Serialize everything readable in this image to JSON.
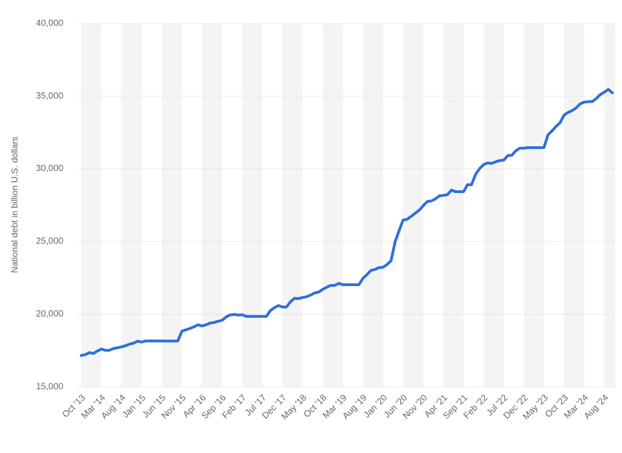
{
  "chart_data": {
    "type": "line",
    "y_label": "National debt in billion U.S. dollars",
    "categories": [
      "Oct '13",
      null,
      null,
      null,
      null,
      "Mar '14",
      null,
      null,
      null,
      null,
      "Aug '14",
      null,
      null,
      null,
      null,
      "Jan '15",
      null,
      null,
      null,
      null,
      "Jun '15",
      null,
      null,
      null,
      null,
      "Nov '15",
      null,
      null,
      null,
      null,
      "Apr '16",
      null,
      null,
      null,
      null,
      "Sep '16",
      null,
      null,
      null,
      null,
      "Feb '17",
      null,
      null,
      null,
      null,
      "Jul '17",
      null,
      null,
      null,
      null,
      "Dec '17",
      null,
      null,
      null,
      null,
      "May '18",
      null,
      null,
      null,
      null,
      "Oct '18",
      null,
      null,
      null,
      null,
      "Mar '19",
      null,
      null,
      null,
      null,
      "Aug '19",
      null,
      null,
      null,
      null,
      "Jan '20",
      null,
      null,
      null,
      null,
      "Jun '20",
      null,
      null,
      null,
      null,
      "Nov '20",
      null,
      null,
      null,
      null,
      "Apr '21",
      null,
      null,
      null,
      null,
      "Sep '21",
      null,
      null,
      null,
      null,
      "Feb '22",
      null,
      null,
      null,
      null,
      "Jul '22",
      null,
      null,
      null,
      null,
      "Dec '22",
      null,
      null,
      null,
      null,
      "May '23",
      null,
      null,
      null,
      null,
      "Oct '23",
      null,
      null,
      null,
      null,
      "Mar '24",
      null,
      null,
      null,
      null,
      "Aug '24",
      null,
      null
    ],
    "values": [
      17156,
      17217,
      17352,
      17293,
      17463,
      17601,
      17508,
      17517,
      17633,
      17687,
      17749,
      17824,
      17937,
      18005,
      18141,
      18082,
      18156,
      18152,
      18152,
      18152,
      18152,
      18151,
      18151,
      18151,
      18153,
      18827,
      18922,
      19013,
      19125,
      19264,
      19187,
      19265,
      19381,
      19428,
      19510,
      19573,
      19805,
      19948,
      19977,
      19938,
      19959,
      19846,
      19846,
      19846,
      19845,
      19845,
      19845,
      20245,
      20442,
      20590,
      20493,
      20494,
      20856,
      21090,
      21067,
      21145,
      21195,
      21313,
      21458,
      21516,
      21702,
      21850,
      21974,
      21982,
      22116,
      22028,
      22027,
      22028,
      22023,
      22024,
      22462,
      22719,
      23008,
      23076,
      23201,
      23223,
      23410,
      23686,
      24974,
      25747,
      26477,
      26525,
      26728,
      26945,
      27154,
      27462,
      27748,
      27783,
      27925,
      28133,
      28173,
      28218,
      28529,
      28428,
      28428,
      28428,
      28908,
      28908,
      29617,
      30012,
      30287,
      30402,
      30373,
      30478,
      30568,
      30595,
      30909,
      30929,
      31238,
      31414,
      31420,
      31456,
      31457,
      31458,
      31458,
      31465,
      32332,
      32609,
      32915,
      33167,
      33700,
      33880,
      34001,
      34189,
      34467,
      34585,
      34617,
      34625,
      34832,
      35105,
      35266,
      35465,
      35230
    ],
    "color": "#2f6fd9",
    "ylim": [
      15000,
      40000
    ],
    "yticks": [
      {
        "value": 15000,
        "label": "15,000"
      },
      {
        "value": 20000,
        "label": "20,000"
      },
      {
        "value": 25000,
        "label": "25,000"
      },
      {
        "value": 30000,
        "label": "30,000"
      },
      {
        "value": 35000,
        "label": "35,000"
      },
      {
        "value": 40000,
        "label": "40,000"
      }
    ],
    "grid": true
  }
}
